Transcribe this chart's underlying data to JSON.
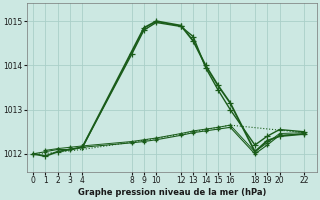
{
  "title": "Graphe pression niveau de la mer (hPa)",
  "bg_color": "#cce8e2",
  "grid_color": "#aacfc8",
  "line_color": "#1a5c1a",
  "ylim": [
    1011.6,
    1015.4
  ],
  "yticks": [
    1012,
    1013,
    1014,
    1015
  ],
  "xlim": [
    -0.5,
    23.0
  ],
  "xtick_positions": [
    0,
    1,
    2,
    3,
    4,
    8,
    9,
    10,
    12,
    13,
    14,
    15,
    16,
    18,
    19,
    20,
    22
  ],
  "xtick_labels": [
    "0",
    "1",
    "2",
    "3",
    "4",
    "8",
    "9",
    "10",
    "12",
    "13",
    "14",
    "15",
    "16",
    "18",
    "19",
    "20",
    "22"
  ],
  "series": [
    {
      "x": [
        0,
        1,
        2,
        3,
        4,
        9,
        10,
        12,
        13,
        14,
        15,
        16,
        18,
        19,
        20,
        22
      ],
      "y": [
        1012.0,
        1011.95,
        1012.05,
        1012.1,
        1012.15,
        1014.85,
        1015.0,
        1014.9,
        1014.55,
        1014.0,
        1013.55,
        1013.15,
        1012.05,
        1012.3,
        1012.4,
        1012.45
      ],
      "style": "-",
      "marker": "+",
      "lw": 1.3,
      "ms": 4
    },
    {
      "x": [
        4,
        8,
        9,
        10,
        12,
        13,
        14,
        15,
        16,
        18,
        19,
        20,
        22
      ],
      "y": [
        1012.15,
        1014.25,
        1014.8,
        1014.97,
        1014.88,
        1014.65,
        1013.95,
        1013.45,
        1013.0,
        1012.2,
        1012.4,
        1012.55,
        1012.5
      ],
      "style": "-",
      "marker": "+",
      "lw": 1.0,
      "ms": 4
    },
    {
      "x": [
        0,
        1,
        2,
        3,
        4,
        8,
        9,
        10,
        12,
        13,
        14,
        15,
        16,
        18,
        19,
        20,
        22
      ],
      "y": [
        1012.0,
        1012.05,
        1012.1,
        1012.1,
        1012.15,
        1012.25,
        1012.28,
        1012.32,
        1012.42,
        1012.48,
        1012.52,
        1012.56,
        1012.6,
        1012.0,
        1012.2,
        1012.42,
        1012.45
      ],
      "style": "-",
      "marker": "+",
      "lw": 0.8,
      "ms": 3
    },
    {
      "x": [
        1,
        2,
        3,
        4,
        8,
        9,
        10,
        12,
        13,
        14,
        15,
        16,
        18,
        19,
        20,
        22
      ],
      "y": [
        1012.08,
        1012.12,
        1012.15,
        1012.18,
        1012.28,
        1012.32,
        1012.36,
        1012.46,
        1012.52,
        1012.56,
        1012.6,
        1012.65,
        1012.05,
        1012.25,
        1012.46,
        1012.48
      ],
      "style": "-",
      "marker": "+",
      "lw": 0.7,
      "ms": 3
    },
    {
      "x": [
        0,
        4,
        10,
        16,
        22
      ],
      "y": [
        1011.98,
        1012.1,
        1012.35,
        1012.65,
        1012.48
      ],
      "style": ":",
      "marker": null,
      "lw": 0.8,
      "ms": 0
    }
  ]
}
